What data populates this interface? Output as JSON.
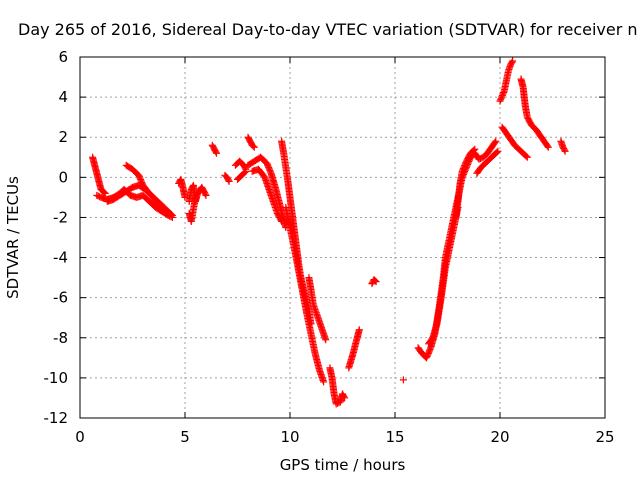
{
  "chart_data": {
    "type": "scatter",
    "title": "Day 265 of 2016, Sidereal Day-to-day VTEC variation (SDTVAR) for receiver n",
    "xlabel": "GPS time / hours",
    "ylabel": "SDTVAR / TECUs",
    "xlim": [
      0,
      25
    ],
    "ylim": [
      -12,
      6
    ],
    "xticks": [
      "0",
      "5",
      "10",
      "15",
      "20",
      "25"
    ],
    "yticks": [
      "-12",
      "-10",
      "-8",
      "-6",
      "-4",
      "-2",
      "0",
      "2",
      "4",
      "6"
    ],
    "grid": true,
    "marker": "plus",
    "color": "#ff0000",
    "series": [
      {
        "segments": [
          [
            [
              0.6,
              1.0
            ],
            [
              0.7,
              0.6
            ],
            [
              0.8,
              0.2
            ],
            [
              0.9,
              -0.2
            ],
            [
              1.0,
              -0.6
            ],
            [
              1.2,
              -0.8
            ]
          ],
          [
            [
              0.8,
              -0.9
            ],
            [
              1.0,
              -1.0
            ],
            [
              1.3,
              -1.1
            ],
            [
              1.6,
              -1.0
            ],
            [
              1.9,
              -0.8
            ],
            [
              2.1,
              -0.6
            ],
            [
              2.4,
              -0.9
            ],
            [
              2.7,
              -1.0
            ],
            [
              3.0,
              -0.9
            ],
            [
              3.3,
              -1.2
            ],
            [
              3.6,
              -1.5
            ],
            [
              3.9,
              -1.7
            ],
            [
              4.2,
              -1.9
            ],
            [
              4.4,
              -2.0
            ]
          ],
          [
            [
              1.3,
              -1.2
            ],
            [
              1.6,
              -1.1
            ],
            [
              1.9,
              -0.9
            ],
            [
              2.2,
              -0.7
            ],
            [
              2.5,
              -0.5
            ],
            [
              2.8,
              -0.4
            ],
            [
              3.1,
              -0.6
            ],
            [
              3.4,
              -0.9
            ],
            [
              3.7,
              -1.3
            ],
            [
              4.0,
              -1.5
            ],
            [
              4.2,
              -1.7
            ],
            [
              4.4,
              -1.9
            ]
          ],
          [
            [
              2.2,
              0.6
            ],
            [
              2.5,
              0.4
            ],
            [
              2.8,
              0.1
            ],
            [
              3.0,
              -0.4
            ],
            [
              3.3,
              -0.8
            ],
            [
              3.6,
              -1.1
            ],
            [
              3.8,
              -1.3
            ],
            [
              4.0,
              -1.5
            ]
          ],
          [
            [
              4.7,
              -0.3
            ],
            [
              4.8,
              -0.1
            ],
            [
              4.9,
              -0.5
            ],
            [
              5.0,
              -1.0
            ]
          ],
          [
            [
              5.2,
              -1.2
            ],
            [
              5.3,
              -0.6
            ],
            [
              5.4,
              -0.4
            ],
            [
              5.5,
              -1.2
            ],
            [
              5.6,
              -0.8
            ],
            [
              5.8,
              -0.5
            ],
            [
              6.0,
              -0.9
            ]
          ],
          [
            [
              5.2,
              -1.8
            ],
            [
              5.3,
              -2.2
            ],
            [
              5.4,
              -1.6
            ],
            [
              5.5,
              -1.0
            ]
          ],
          [
            [
              6.3,
              1.6
            ],
            [
              6.4,
              1.4
            ],
            [
              6.5,
              1.2
            ]
          ],
          [
            [
              6.9,
              0.1
            ],
            [
              7.0,
              0.0
            ],
            [
              7.1,
              -0.2
            ]
          ],
          [
            [
              7.4,
              0.6
            ],
            [
              7.6,
              0.8
            ],
            [
              7.8,
              0.6
            ],
            [
              7.9,
              0.4
            ]
          ],
          [
            [
              7.5,
              -0.1
            ],
            [
              7.7,
              0.1
            ],
            [
              7.9,
              0.3
            ]
          ],
          [
            [
              8.0,
              2.0
            ],
            [
              8.1,
              1.8
            ],
            [
              8.2,
              1.6
            ],
            [
              8.3,
              1.5
            ]
          ],
          [
            [
              8.0,
              0.6
            ],
            [
              8.3,
              0.8
            ],
            [
              8.6,
              1.0
            ],
            [
              8.9,
              0.7
            ],
            [
              9.1,
              0.2
            ],
            [
              9.3,
              -0.5
            ],
            [
              9.5,
              -1.3
            ],
            [
              9.7,
              -2.1
            ],
            [
              9.8,
              -2.5
            ]
          ],
          [
            [
              8.2,
              0.3
            ],
            [
              8.5,
              0.4
            ],
            [
              8.8,
              0.0
            ],
            [
              9.0,
              -0.6
            ],
            [
              9.2,
              -1.2
            ],
            [
              9.4,
              -1.8
            ],
            [
              9.6,
              -2.2
            ]
          ],
          [
            [
              9.6,
              1.8
            ],
            [
              9.7,
              1.2
            ],
            [
              9.8,
              0.5
            ],
            [
              9.9,
              -0.2
            ],
            [
              10.0,
              -1.0
            ],
            [
              10.1,
              -1.8
            ],
            [
              10.2,
              -2.6
            ],
            [
              10.3,
              -3.4
            ],
            [
              10.4,
              -4.2
            ],
            [
              10.5,
              -4.9
            ],
            [
              10.7,
              -5.8
            ],
            [
              10.9,
              -6.6
            ],
            [
              11.0,
              -7.3
            ]
          ],
          [
            [
              9.8,
              -1.5
            ],
            [
              10.0,
              -2.5
            ],
            [
              10.2,
              -3.5
            ],
            [
              10.4,
              -4.6
            ],
            [
              10.6,
              -5.7
            ],
            [
              10.8,
              -6.8
            ],
            [
              11.0,
              -7.8
            ],
            [
              11.2,
              -8.8
            ],
            [
              11.4,
              -9.6
            ],
            [
              11.6,
              -10.2
            ]
          ],
          [
            [
              10.9,
              -5.0
            ],
            [
              11.0,
              -5.6
            ],
            [
              11.1,
              -6.3
            ],
            [
              11.3,
              -6.9
            ],
            [
              11.5,
              -7.5
            ],
            [
              11.7,
              -8.1
            ]
          ],
          [
            [
              11.9,
              -9.5
            ],
            [
              12.0,
              -10.0
            ],
            [
              12.1,
              -10.8
            ],
            [
              12.2,
              -11.3
            ],
            [
              12.4,
              -11.2
            ],
            [
              12.5,
              -10.8
            ],
            [
              12.6,
              -11.0
            ]
          ],
          [
            [
              12.8,
              -9.5
            ],
            [
              13.0,
              -8.8
            ],
            [
              13.2,
              -8.0
            ],
            [
              13.3,
              -7.6
            ]
          ],
          [
            [
              13.9,
              -5.3
            ],
            [
              14.0,
              -5.1
            ],
            [
              14.1,
              -5.2
            ]
          ],
          [
            [
              15.4,
              -10.1
            ]
          ],
          [
            [
              16.1,
              -8.5
            ],
            [
              16.3,
              -8.8
            ],
            [
              16.5,
              -9.0
            ],
            [
              16.7,
              -8.5
            ],
            [
              16.9,
              -7.8
            ],
            [
              17.1,
              -6.5
            ],
            [
              17.3,
              -5.0
            ],
            [
              17.4,
              -4.0
            ],
            [
              17.6,
              -3.0
            ],
            [
              17.8,
              -2.0
            ],
            [
              18.0,
              -1.0
            ],
            [
              18.2,
              0.0
            ],
            [
              18.4,
              0.5
            ],
            [
              18.6,
              1.0
            ],
            [
              18.8,
              1.2
            ],
            [
              19.0,
              0.9
            ],
            [
              19.2,
              1.0
            ],
            [
              19.4,
              1.2
            ],
            [
              19.6,
              1.5
            ],
            [
              19.8,
              1.8
            ]
          ],
          [
            [
              16.6,
              -8.3
            ],
            [
              16.8,
              -8.0
            ],
            [
              17.0,
              -7.3
            ],
            [
              17.2,
              -6.0
            ],
            [
              17.4,
              -4.5
            ],
            [
              17.6,
              -3.5
            ],
            [
              17.8,
              -2.5
            ],
            [
              18.0,
              -1.5
            ]
          ],
          [
            [
              17.9,
              -2.0
            ],
            [
              18.0,
              -1.2
            ],
            [
              18.1,
              -0.3
            ],
            [
              18.2,
              0.3
            ],
            [
              18.4,
              0.8
            ],
            [
              18.6,
              1.2
            ],
            [
              18.8,
              1.4
            ]
          ],
          [
            [
              18.9,
              0.2
            ],
            [
              19.1,
              0.5
            ],
            [
              19.3,
              0.7
            ],
            [
              19.6,
              1.0
            ],
            [
              19.9,
              1.3
            ]
          ],
          [
            [
              20.0,
              3.8
            ],
            [
              20.2,
              4.3
            ],
            [
              20.4,
              5.3
            ],
            [
              20.5,
              5.6
            ],
            [
              20.6,
              5.8
            ]
          ],
          [
            [
              20.1,
              2.5
            ],
            [
              20.3,
              2.2
            ],
            [
              20.5,
              1.9
            ],
            [
              20.7,
              1.6
            ],
            [
              20.9,
              1.4
            ],
            [
              21.1,
              1.2
            ],
            [
              21.3,
              1.0
            ]
          ],
          [
            [
              21.0,
              4.9
            ],
            [
              21.1,
              4.5
            ],
            [
              21.2,
              3.6
            ],
            [
              21.3,
              3.0
            ],
            [
              21.5,
              2.6
            ],
            [
              21.7,
              2.4
            ],
            [
              21.9,
              2.1
            ],
            [
              22.1,
              1.8
            ],
            [
              22.3,
              1.5
            ]
          ],
          [
            [
              22.9,
              1.8
            ],
            [
              23.0,
              1.5
            ],
            [
              23.1,
              1.3
            ]
          ]
        ]
      }
    ]
  }
}
